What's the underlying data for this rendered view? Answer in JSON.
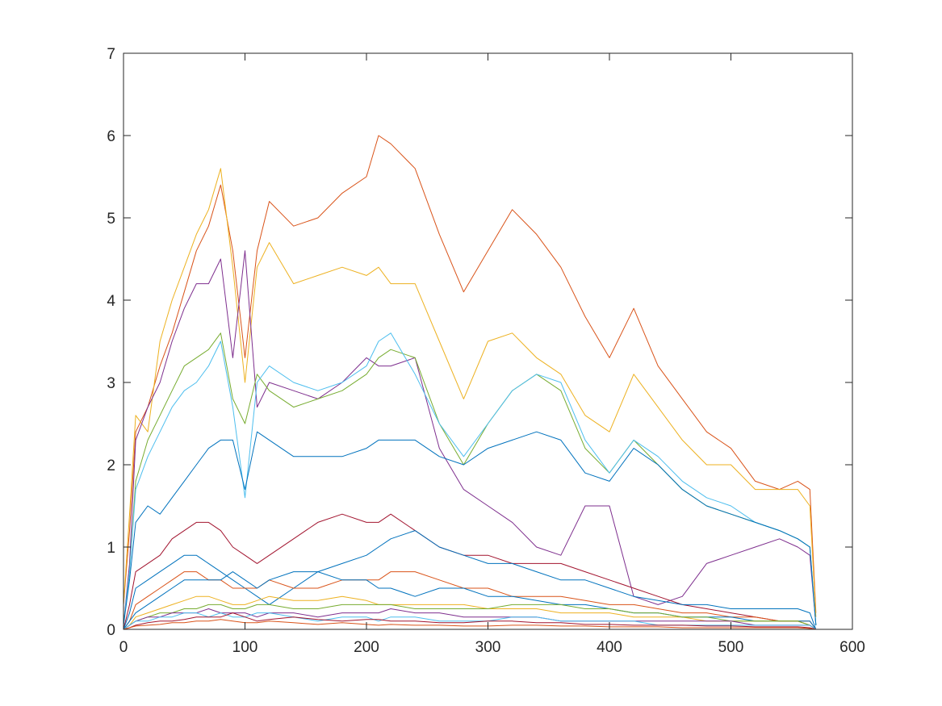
{
  "chart_data": {
    "type": "line",
    "title": "",
    "xlabel": "",
    "ylabel": "",
    "xlim": [
      0,
      600
    ],
    "ylim": [
      0,
      7
    ],
    "x_ticks": [
      "0",
      "100",
      "200",
      "300",
      "400",
      "500",
      "600"
    ],
    "y_ticks": [
      "0",
      "1",
      "2",
      "3",
      "4",
      "5",
      "6",
      "7"
    ],
    "grid": false,
    "legend": "none",
    "x": [
      0,
      5,
      10,
      20,
      30,
      40,
      50,
      60,
      70,
      80,
      90,
      100,
      110,
      120,
      140,
      160,
      180,
      200,
      210,
      220,
      240,
      260,
      280,
      300,
      320,
      340,
      360,
      380,
      400,
      420,
      440,
      460,
      480,
      500,
      520,
      540,
      555,
      565,
      570
    ],
    "series": [
      {
        "color": "#D95319",
        "values": [
          0.3,
          1.2,
          2.4,
          2.7,
          3.2,
          3.6,
          4.1,
          4.6,
          4.9,
          5.4,
          4.6,
          3.3,
          4.6,
          5.2,
          4.9,
          5.0,
          5.3,
          5.5,
          6.0,
          5.9,
          5.6,
          4.8,
          4.1,
          4.6,
          5.1,
          4.8,
          4.4,
          3.8,
          3.3,
          3.9,
          3.2,
          2.8,
          2.4,
          2.2,
          1.8,
          1.7,
          1.8,
          1.7,
          0.2
        ]
      },
      {
        "color": "#EDB120",
        "values": [
          0.3,
          1.4,
          2.6,
          2.4,
          3.5,
          4.0,
          4.4,
          4.8,
          5.1,
          5.6,
          4.4,
          3.0,
          4.4,
          4.7,
          4.2,
          4.3,
          4.4,
          4.3,
          4.4,
          4.2,
          4.2,
          3.5,
          2.8,
          3.5,
          3.6,
          3.3,
          3.1,
          2.6,
          2.4,
          3.1,
          2.7,
          2.3,
          2.0,
          2.0,
          1.7,
          1.7,
          1.7,
          1.5,
          0.15
        ]
      },
      {
        "color": "#7E2F8E",
        "values": [
          0.05,
          0.8,
          2.3,
          2.7,
          3.0,
          3.5,
          3.9,
          4.2,
          4.2,
          4.5,
          3.3,
          4.6,
          2.7,
          3.0,
          2.9,
          2.8,
          3.0,
          3.3,
          3.2,
          3.2,
          3.3,
          2.2,
          1.7,
          1.5,
          1.3,
          1.0,
          0.9,
          1.5,
          1.5,
          0.4,
          0.3,
          0.4,
          0.8,
          0.9,
          1.0,
          1.1,
          1.0,
          0.9,
          0.05
        ]
      },
      {
        "color": "#77AC30",
        "values": [
          0.05,
          0.7,
          1.8,
          2.3,
          2.6,
          2.9,
          3.2,
          3.3,
          3.4,
          3.6,
          2.8,
          2.5,
          3.1,
          2.9,
          2.7,
          2.8,
          2.9,
          3.1,
          3.3,
          3.4,
          3.3,
          2.5,
          2.0,
          2.5,
          2.9,
          3.1,
          2.9,
          2.2,
          1.9,
          2.3,
          2.0,
          1.7,
          1.5,
          1.4,
          1.3,
          1.2,
          1.1,
          1.0,
          0.05
        ]
      },
      {
        "color": "#4DBEEE",
        "values": [
          0.05,
          0.7,
          1.7,
          2.1,
          2.4,
          2.7,
          2.9,
          3.0,
          3.2,
          3.5,
          2.7,
          1.6,
          3.0,
          3.2,
          3.0,
          2.9,
          3.0,
          3.2,
          3.5,
          3.6,
          3.1,
          2.5,
          2.1,
          2.5,
          2.9,
          3.1,
          3.0,
          2.3,
          1.9,
          2.3,
          2.1,
          1.8,
          1.6,
          1.5,
          1.3,
          1.2,
          1.1,
          1.0,
          0.05
        ]
      },
      {
        "color": "#0072BD",
        "values": [
          0.05,
          0.6,
          1.3,
          1.5,
          1.4,
          1.6,
          1.8,
          2.0,
          2.2,
          2.3,
          2.3,
          1.7,
          2.4,
          2.3,
          2.1,
          2.1,
          2.1,
          2.2,
          2.3,
          2.3,
          2.3,
          2.1,
          2.0,
          2.2,
          2.3,
          2.4,
          2.3,
          1.9,
          1.8,
          2.2,
          2.0,
          1.7,
          1.5,
          1.4,
          1.3,
          1.2,
          1.1,
          1.0,
          0.05
        ]
      },
      {
        "color": "#A2142F",
        "values": [
          0.0,
          0.3,
          0.7,
          0.8,
          0.9,
          1.1,
          1.2,
          1.3,
          1.3,
          1.2,
          1.0,
          0.9,
          0.8,
          0.9,
          1.1,
          1.3,
          1.4,
          1.3,
          1.3,
          1.4,
          1.2,
          1.0,
          0.9,
          0.9,
          0.8,
          0.8,
          0.8,
          0.7,
          0.6,
          0.5,
          0.4,
          0.3,
          0.25,
          0.2,
          0.15,
          0.1,
          0.1,
          0.05,
          0.0
        ]
      },
      {
        "color": "#0072BD",
        "values": [
          0.0,
          0.2,
          0.5,
          0.6,
          0.7,
          0.8,
          0.9,
          0.9,
          0.8,
          0.7,
          0.6,
          0.5,
          0.4,
          0.3,
          0.5,
          0.7,
          0.8,
          0.9,
          1.0,
          1.1,
          1.2,
          1.0,
          0.9,
          0.8,
          0.8,
          0.7,
          0.6,
          0.6,
          0.5,
          0.4,
          0.35,
          0.3,
          0.3,
          0.25,
          0.25,
          0.25,
          0.25,
          0.2,
          0.0
        ]
      },
      {
        "color": "#D95319",
        "values": [
          0.0,
          0.1,
          0.3,
          0.4,
          0.5,
          0.6,
          0.7,
          0.7,
          0.6,
          0.6,
          0.5,
          0.5,
          0.5,
          0.6,
          0.5,
          0.5,
          0.6,
          0.6,
          0.6,
          0.7,
          0.7,
          0.6,
          0.5,
          0.5,
          0.4,
          0.4,
          0.4,
          0.35,
          0.3,
          0.3,
          0.25,
          0.2,
          0.2,
          0.15,
          0.15,
          0.1,
          0.1,
          0.1,
          0.0
        ]
      },
      {
        "color": "#0072BD",
        "values": [
          0.0,
          0.1,
          0.2,
          0.3,
          0.4,
          0.5,
          0.6,
          0.6,
          0.6,
          0.6,
          0.7,
          0.6,
          0.5,
          0.6,
          0.7,
          0.7,
          0.6,
          0.6,
          0.5,
          0.5,
          0.4,
          0.5,
          0.5,
          0.4,
          0.4,
          0.35,
          0.3,
          0.3,
          0.25,
          0.2,
          0.2,
          0.15,
          0.15,
          0.15,
          0.1,
          0.1,
          0.1,
          0.1,
          0.0
        ]
      },
      {
        "color": "#EDB120",
        "values": [
          0.0,
          0.05,
          0.15,
          0.2,
          0.25,
          0.3,
          0.35,
          0.4,
          0.4,
          0.35,
          0.3,
          0.3,
          0.35,
          0.4,
          0.35,
          0.35,
          0.4,
          0.35,
          0.3,
          0.3,
          0.3,
          0.3,
          0.3,
          0.25,
          0.25,
          0.25,
          0.2,
          0.2,
          0.2,
          0.15,
          0.15,
          0.15,
          0.1,
          0.1,
          0.1,
          0.1,
          0.1,
          0.05,
          0.0
        ]
      },
      {
        "color": "#77AC30",
        "values": [
          0.0,
          0.05,
          0.1,
          0.15,
          0.2,
          0.2,
          0.25,
          0.25,
          0.3,
          0.3,
          0.25,
          0.25,
          0.3,
          0.3,
          0.25,
          0.25,
          0.3,
          0.3,
          0.3,
          0.3,
          0.25,
          0.25,
          0.25,
          0.25,
          0.3,
          0.3,
          0.3,
          0.25,
          0.25,
          0.2,
          0.2,
          0.15,
          0.15,
          0.1,
          0.1,
          0.1,
          0.1,
          0.05,
          0.0
        ]
      },
      {
        "color": "#7E2F8E",
        "values": [
          0.0,
          0.05,
          0.1,
          0.15,
          0.15,
          0.2,
          0.2,
          0.2,
          0.25,
          0.2,
          0.2,
          0.2,
          0.15,
          0.2,
          0.2,
          0.15,
          0.2,
          0.2,
          0.2,
          0.25,
          0.2,
          0.2,
          0.15,
          0.15,
          0.15,
          0.15,
          0.1,
          0.1,
          0.1,
          0.1,
          0.1,
          0.1,
          0.1,
          0.1,
          0.05,
          0.05,
          0.05,
          0.05,
          0.0
        ]
      },
      {
        "color": "#4DBEEE",
        "values": [
          0.0,
          0.05,
          0.1,
          0.1,
          0.15,
          0.15,
          0.2,
          0.2,
          0.15,
          0.2,
          0.15,
          0.15,
          0.2,
          0.2,
          0.15,
          0.1,
          0.15,
          0.15,
          0.1,
          0.15,
          0.15,
          0.1,
          0.1,
          0.1,
          0.15,
          0.15,
          0.1,
          0.1,
          0.1,
          0.1,
          0.05,
          0.05,
          0.05,
          0.05,
          0.05,
          0.05,
          0.05,
          0.05,
          0.0
        ]
      },
      {
        "color": "#A2142F",
        "values": [
          0.0,
          0.02,
          0.05,
          0.08,
          0.1,
          0.1,
          0.12,
          0.15,
          0.15,
          0.15,
          0.2,
          0.15,
          0.1,
          0.12,
          0.15,
          0.12,
          0.1,
          0.12,
          0.12,
          0.1,
          0.1,
          0.08,
          0.08,
          0.1,
          0.1,
          0.08,
          0.08,
          0.06,
          0.06,
          0.05,
          0.05,
          0.05,
          0.04,
          0.04,
          0.03,
          0.03,
          0.03,
          0.02,
          0.0
        ]
      },
      {
        "color": "#D95319",
        "values": [
          0.0,
          0.02,
          0.04,
          0.05,
          0.06,
          0.08,
          0.08,
          0.1,
          0.1,
          0.12,
          0.1,
          0.08,
          0.08,
          0.1,
          0.08,
          0.06,
          0.08,
          0.06,
          0.05,
          0.06,
          0.05,
          0.05,
          0.04,
          0.04,
          0.05,
          0.05,
          0.04,
          0.04,
          0.03,
          0.03,
          0.03,
          0.02,
          0.02,
          0.02,
          0.02,
          0.02,
          0.02,
          0.01,
          0.0
        ]
      }
    ]
  }
}
